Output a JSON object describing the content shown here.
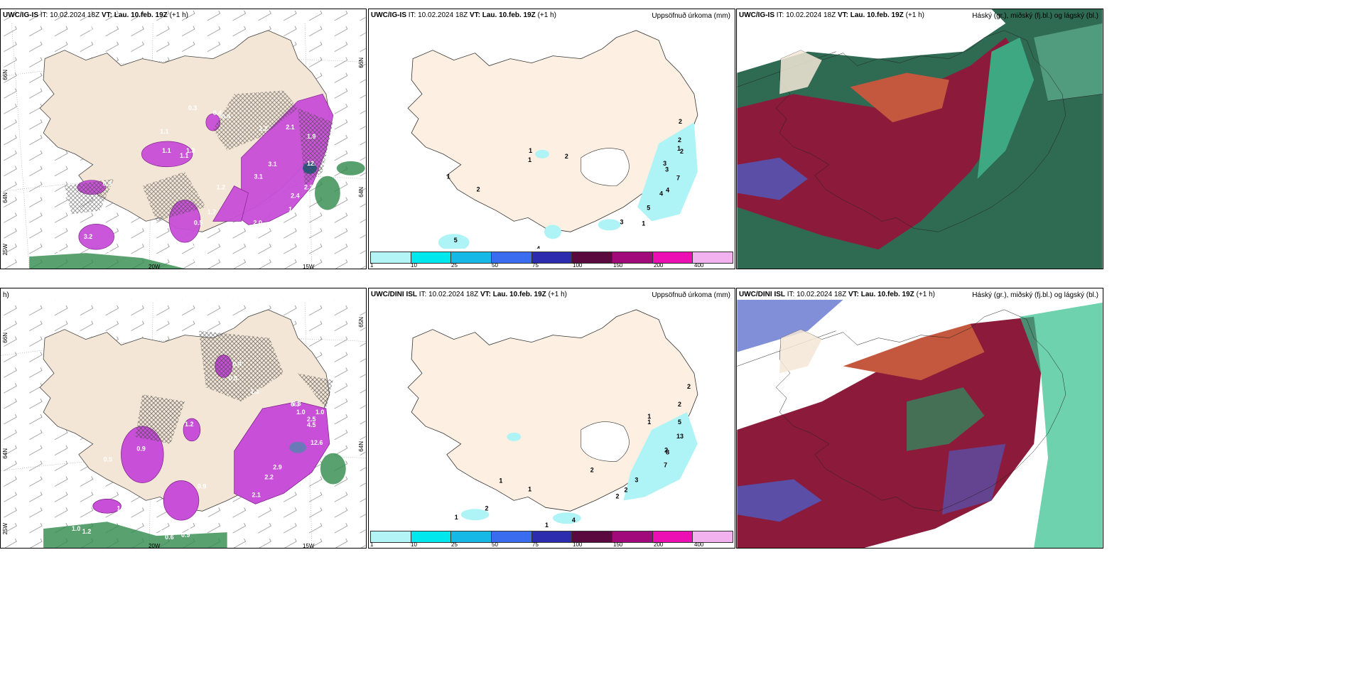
{
  "panels": {
    "top_left": {
      "model": "UWC/IG-IS",
      "title_rest": "IT: 10.02.2024 18Z",
      "vt_label": "VT: Lau. 10.feb. 19Z",
      "lead": "(+1 h)"
    },
    "top_mid": {
      "model": "UWC/IG-IS",
      "title_rest": "IT: 10.02.2024 18Z",
      "vt_label": "VT: Lau. 10.feb. 19Z",
      "lead": "(+1 h)",
      "field": "Uppsöfnuð úrkoma (mm)"
    },
    "top_right": {
      "model": "UWC/IG-IS",
      "title_rest": "IT: 10.02.2024 18Z",
      "vt_label": "VT: Lau. 10.feb. 19Z",
      "lead": "(+1 h)",
      "field": "Háský (gr.), miðský (fj.bl.) og lágský (bl.)"
    },
    "bot_left": {
      "partial_line": "h)"
    },
    "bot_mid": {
      "model": "UWC/DINI ISL",
      "title_rest": "IT: 10.02.2024 18Z",
      "vt_label": "VT: Lau. 10.feb. 19Z",
      "lead": "(+1 h)",
      "field": "Uppsöfnuð úrkoma (mm)"
    },
    "bot_right": {
      "model": "UWC/DINI ISL",
      "title_rest": "IT: 10.02.2024 18Z",
      "vt_label": "VT: Lau. 10.feb. 19Z",
      "lead": "(+1 h)",
      "field": "Háský (gr.), miðský (fj.bl.) og lágský (bl.)"
    }
  },
  "axes": {
    "lat_labels": [
      "66N",
      "64N",
      "65N"
    ],
    "lon_labels": [
      "25W",
      "20W",
      "15W"
    ]
  },
  "colorbar": {
    "labels": [
      "1",
      "10",
      "25",
      "50",
      "75",
      "100",
      "150",
      "200",
      "400"
    ],
    "colors": [
      "#b3f4f6",
      "#00e8ee",
      "#16b9e6",
      "#3a6cf0",
      "#2b2cae",
      "#5a0a3e",
      "#a00a7a",
      "#ec10b4",
      "#f2b2f0"
    ]
  },
  "values": {
    "tl": [
      "0.3",
      "0.4",
      "0.4",
      "0.3",
      "1.1",
      "1.3",
      "1.1",
      "0.9",
      "1.2",
      "0.5",
      "1.7",
      "3.1",
      "2.1",
      "3.1",
      "1.2",
      "1.9",
      "12.",
      "2.3",
      "2.4",
      "1.6",
      "2.0",
      "0.9",
      "0.5",
      "0.6",
      "3.2",
      "0.5",
      "1.1",
      "5",
      "0.4",
      "3.4"
    ],
    "tm": [
      "2",
      "2",
      "1",
      "1",
      "2",
      "1",
      "1",
      "2",
      "3",
      "3",
      "2",
      "7",
      "4",
      "4",
      "5",
      "3",
      "1",
      "5",
      "4"
    ],
    "bl": [
      "0.4",
      "0.5",
      "1.3",
      "0.3",
      "1.2",
      "1.0",
      "1.0",
      "2.9",
      "0.5",
      "0.9",
      "0.9",
      "0.5",
      "1.3",
      "2.2",
      "2.1",
      "12.6",
      "4.5",
      "2.5",
      "0.3",
      "1.8",
      "1.0",
      "1.2",
      "2.6",
      "0.6",
      "0.9",
      "1.0",
      "0.5"
    ],
    "bm": [
      "2",
      "2",
      "1",
      "5",
      "13",
      "1",
      "2",
      "8",
      "7",
      "2",
      "3",
      "2",
      "2",
      "1",
      "1",
      "1",
      "2",
      "1",
      "4"
    ]
  }
}
